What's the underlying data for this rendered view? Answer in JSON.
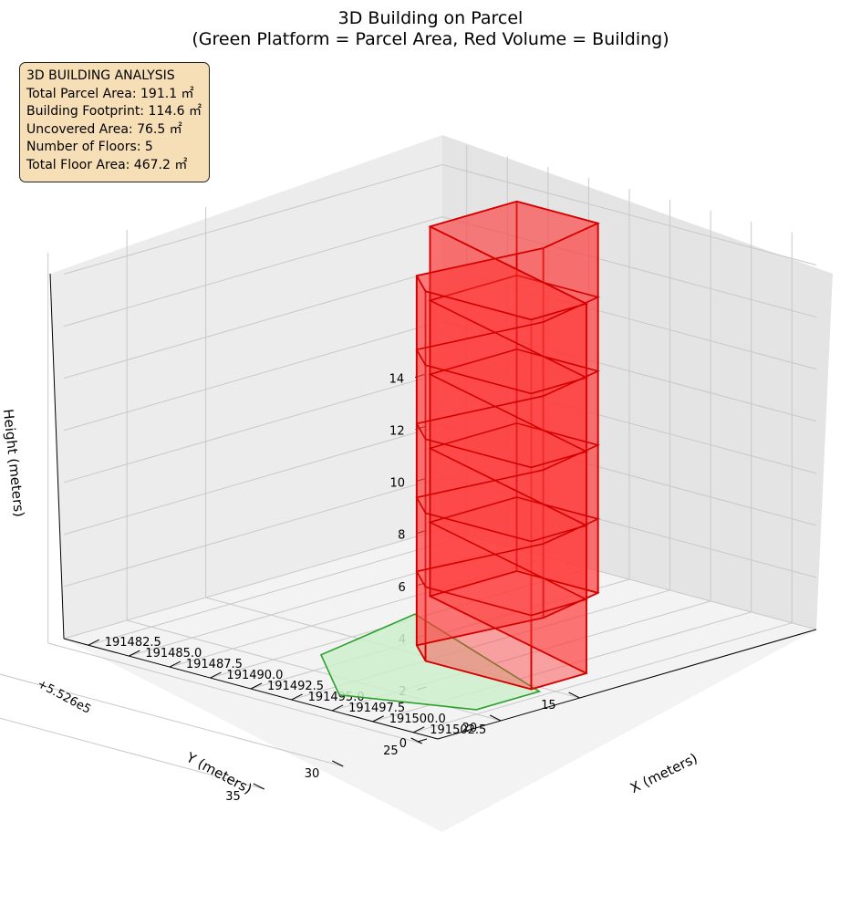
{
  "chart_data": {
    "type": "3d-polygon",
    "title": "3D Building on Parcel",
    "subtitle": "(Green Platform = Parcel Area, Red Volume = Building)",
    "xlabel": "X (meters)",
    "ylabel": "Y (meters)",
    "zlabel": "Height (meters)",
    "y_offset_label": "+5.526e5",
    "x_ticks": [
      "191482.5",
      "191485.0",
      "191487.5",
      "191490.0",
      "191492.5",
      "191495.0",
      "191497.5",
      "191500.0",
      "191502.5"
    ],
    "y_ticks": [
      "15",
      "20",
      "25",
      "30",
      "35"
    ],
    "z_ticks": [
      "0",
      "2",
      "4",
      "6",
      "8",
      "10",
      "12",
      "14"
    ],
    "xlim": [
      191481,
      191504
    ],
    "ylim": [
      552612,
      552636
    ],
    "zlim": [
      0,
      15
    ],
    "grid": true,
    "parcel_area_m2": 191.1,
    "building_footprint_m2": 114.6,
    "floors": 5,
    "colors": {
      "parcel_fill": "#ccefcc",
      "parcel_edge": "#2ca02c",
      "building_fill": "#ff3b3b",
      "building_edge": "#d40000"
    }
  },
  "info_box": {
    "title": "3D BUILDING ANALYSIS",
    "lines": [
      "Total Parcel Area: 191.1 ㎡",
      "Building Footprint: 114.6 ㎡",
      "Uncovered Area: 76.5 ㎡",
      "Number of Floors: 5",
      "Total Floor Area: 467.2 ㎡"
    ]
  }
}
